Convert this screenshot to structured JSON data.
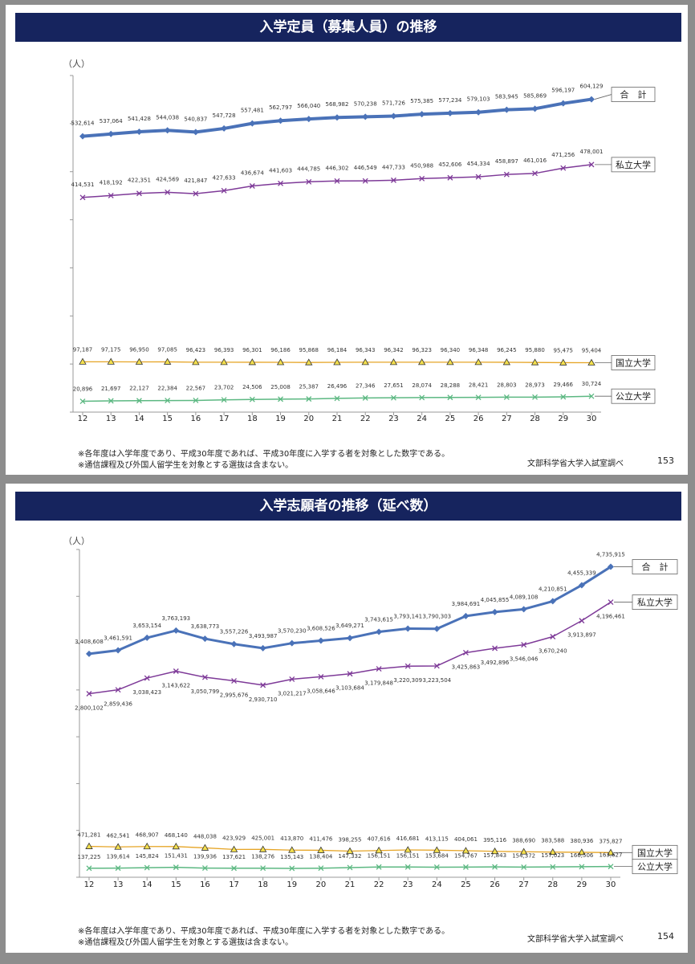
{
  "slides": [
    {
      "title": "入学定員（募集人員）の推移",
      "notes": [
        "※各年度は入学年度であり、平成30年度であれば、平成30年度に入学する者を対象とした数字である。",
        "※通信課程及び外国人留学生を対象とする選抜は含まない。"
      ],
      "source": "文部科学省大学入試室調べ",
      "page": "153"
    },
    {
      "title": "入学志願者の推移（延べ数）",
      "notes": [
        "※各年度は入学年度であり、平成30年度であれば、平成30年度に入学する者を対象とした数字である。",
        "※通信課程及び外国人留学生を対象とする選抜は含まない。"
      ],
      "source": "文部科学省大学入試室調べ",
      "page": "154"
    }
  ],
  "colors": {
    "header": "#16245e",
    "total": "#4a72b8",
    "private": "#7e3a98",
    "national": "#e6a526",
    "public": "#5cb882"
  },
  "chart_data": [
    {
      "type": "line",
      "title": "入学定員（募集人員）の推移",
      "ylabel": "（人）",
      "xlabel": "",
      "categories": [
        "12",
        "13",
        "14",
        "15",
        "16",
        "17",
        "18",
        "19",
        "20",
        "21",
        "22",
        "23",
        "24",
        "25",
        "26",
        "27",
        "28",
        "29",
        "30"
      ],
      "ylim": [
        0,
        650000
      ],
      "grid": false,
      "legend": "right-end labels",
      "series": [
        {
          "name": "合　計",
          "marker": "diamond",
          "color": "#4a72b8",
          "labels": [
            "532,614",
            "537,064",
            "541,428",
            "544,038",
            "540,837",
            "547,728",
            "557,481",
            "562,797",
            "566,040",
            "568,982",
            "570,238",
            "571,726",
            "575,385",
            "577,234",
            "579,103",
            "583,945",
            "585,869",
            "596,197",
            "604,129"
          ],
          "values": [
            532614,
            537064,
            541428,
            544038,
            540837,
            547728,
            557481,
            562797,
            566040,
            568982,
            570238,
            571726,
            575385,
            577234,
            579103,
            583945,
            585869,
            596197,
            604129
          ]
        },
        {
          "name": "私立大学",
          "marker": "x",
          "color": "#7e3a98",
          "labels": [
            "414,531",
            "418,192",
            "422,351",
            "424,569",
            "421,847",
            "427,633",
            "436,674",
            "441,603",
            "444,785",
            "446,302",
            "446,549",
            "447,733",
            "450,988",
            "452,606",
            "454,334",
            "458,897",
            "461,016",
            "471,256",
            "478,001"
          ],
          "values": [
            414531,
            418192,
            422351,
            424569,
            421847,
            427633,
            436674,
            441603,
            444785,
            446302,
            446549,
            447733,
            450988,
            452606,
            454334,
            458897,
            461016,
            471256,
            478001
          ]
        },
        {
          "name": "国立大学",
          "marker": "triangle",
          "color": "#e6a526",
          "labels": [
            "97,187",
            "97,175",
            "96,950",
            "97,085",
            "96,423",
            "96,393",
            "96,301",
            "96,186",
            "95,868",
            "96,184",
            "96,343",
            "96,342",
            "96,323",
            "96,340",
            "96,348",
            "96,245",
            "95,880",
            "95,475",
            "95,404"
          ],
          "values": [
            97187,
            97175,
            96950,
            97085,
            96423,
            96393,
            96301,
            96186,
            95868,
            96184,
            96343,
            96342,
            96323,
            96340,
            96348,
            96245,
            95880,
            95475,
            95404
          ]
        },
        {
          "name": "公立大学",
          "marker": "x",
          "color": "#5cb882",
          "labels": [
            "20,896",
            "21,697",
            "22,127",
            "22,384",
            "22,567",
            "23,702",
            "24,506",
            "25,008",
            "25,387",
            "26,496",
            "27,346",
            "27,651",
            "28,074",
            "28,288",
            "28,421",
            "28,803",
            "28,973",
            "29,466",
            "30,724"
          ],
          "values": [
            20896,
            21697,
            22127,
            22384,
            22567,
            23702,
            24506,
            25008,
            25387,
            26496,
            27346,
            27651,
            28074,
            28288,
            28421,
            28803,
            28973,
            29466,
            30724
          ]
        }
      ]
    },
    {
      "type": "line",
      "title": "入学志願者の推移（延べ数）",
      "ylabel": "（人）",
      "xlabel": "",
      "categories": [
        "12",
        "13",
        "14",
        "15",
        "16",
        "17",
        "18",
        "19",
        "20",
        "21",
        "22",
        "23",
        "24",
        "25",
        "26",
        "27",
        "28",
        "29",
        "30"
      ],
      "ylim": [
        0,
        5000000
      ],
      "grid": false,
      "legend": "right-end labels",
      "series": [
        {
          "name": "合　計",
          "marker": "diamond",
          "color": "#4a72b8",
          "labels": [
            "3,408,608",
            "3,461,591",
            "3,653,154",
            "3,763,193",
            "3,638,773",
            "3,557,226",
            "3,493,987",
            "3,570,230",
            "3,608,526",
            "3,649,271",
            "3,743,615",
            "3,793,141",
            "3,790,303",
            "3,984,691",
            "4,045,855",
            "4,089,108",
            "4,210,851",
            "4,455,339",
            "4,735,915"
          ],
          "values": [
            3408608,
            3461591,
            3653154,
            3763193,
            3638773,
            3557226,
            3493987,
            3570230,
            3608526,
            3649271,
            3743615,
            3793141,
            3790303,
            3984691,
            4045855,
            4089108,
            4210851,
            4455339,
            4735915
          ]
        },
        {
          "name": "私立大学",
          "marker": "x",
          "color": "#7e3a98",
          "labels": [
            "2,800,102",
            "2,859,436",
            "3,038,423",
            "3,143,622",
            "3,050,799",
            "2,995,676",
            "2,930,710",
            "3,021,217",
            "3,058,646",
            "3,103,684",
            "3,179,848",
            "3,220,309",
            "3,223,504",
            "3,425,863",
            "3,492,896",
            "3,546,046",
            "3,670,240",
            "3,913,897",
            "4,196,461"
          ],
          "values": [
            2800102,
            2859436,
            3038423,
            3143622,
            3050799,
            2995676,
            2930710,
            3021217,
            3058646,
            3103684,
            3179848,
            3220309,
            3223504,
            3425863,
            3492896,
            3546046,
            3670240,
            3913897,
            4196461
          ]
        },
        {
          "name": "国立大学",
          "marker": "triangle",
          "color": "#e6a526",
          "labels": [
            "471,281",
            "462,541",
            "468,907",
            "468,140",
            "448,038",
            "423,929",
            "425,001",
            "413,870",
            "411,476",
            "398,255",
            "407,616",
            "416,681",
            "413,115",
            "404,061",
            "395,116",
            "388,690",
            "383,588",
            "380,936",
            "375,827"
          ],
          "values": [
            471281,
            462541,
            468907,
            468140,
            448038,
            423929,
            425001,
            413870,
            411476,
            398255,
            407616,
            416681,
            413115,
            404061,
            395116,
            388690,
            383588,
            380936,
            375827
          ]
        },
        {
          "name": "公立大学",
          "marker": "x",
          "color": "#5cb882",
          "labels": [
            "137,225",
            "139,614",
            "145,824",
            "151,431",
            "139,936",
            "137,621",
            "138,276",
            "135,143",
            "138,404",
            "147,332",
            "156,151",
            "156,151",
            "153,684",
            "154,767",
            "157,843",
            "154,372",
            "157,023",
            "160,506",
            "163,627"
          ],
          "values": [
            137225,
            139614,
            145824,
            151431,
            139936,
            137621,
            138276,
            135143,
            138404,
            147332,
            156151,
            156151,
            153684,
            154767,
            157843,
            154372,
            157023,
            160506,
            163627
          ]
        }
      ]
    }
  ]
}
